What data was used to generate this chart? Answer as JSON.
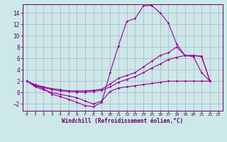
{
  "background_color": "#cce8e8",
  "grid_color": "#b0b0cc",
  "line_color": "#990099",
  "xlabel": "Windchill (Refroidissement éolien,°C)",
  "xlabel_color": "#660066",
  "tick_color": "#660066",
  "xlim": [
    -0.5,
    23.5
  ],
  "ylim": [
    -3.2,
    15.5
  ],
  "yticks": [
    -2,
    0,
    2,
    4,
    6,
    8,
    10,
    12,
    14
  ],
  "xticks": [
    0,
    1,
    2,
    3,
    4,
    5,
    6,
    7,
    8,
    9,
    10,
    11,
    12,
    13,
    14,
    15,
    16,
    17,
    18,
    19,
    20,
    21,
    22,
    23
  ],
  "line1_x": [
    0,
    1,
    2,
    3,
    4,
    5,
    6,
    7,
    8,
    9,
    10,
    11,
    12,
    13,
    14,
    15,
    16,
    17,
    18,
    19,
    20,
    21,
    22
  ],
  "line1_y": [
    2.0,
    1.2,
    0.7,
    -0.3,
    -0.7,
    -1.2,
    -1.7,
    -2.3,
    -2.5,
    -1.7,
    3.5,
    8.2,
    12.5,
    13.0,
    15.2,
    15.3,
    14.0,
    12.2,
    8.5,
    6.5,
    6.3,
    3.5,
    2.0
  ],
  "line2_x": [
    0,
    1,
    2,
    3,
    4,
    5,
    6,
    7,
    8,
    9,
    10,
    11,
    12,
    13,
    14,
    15,
    16,
    17,
    18,
    19,
    20,
    21,
    22
  ],
  "line2_y": [
    2.0,
    1.4,
    1.0,
    0.7,
    0.5,
    0.3,
    0.3,
    0.3,
    0.4,
    0.6,
    1.5,
    2.5,
    3.0,
    3.5,
    4.5,
    5.5,
    6.5,
    7.0,
    8.0,
    6.5,
    6.5,
    6.3,
    2.0
  ],
  "line3_x": [
    0,
    1,
    2,
    3,
    4,
    5,
    6,
    7,
    8,
    9,
    10,
    11,
    12,
    13,
    14,
    15,
    16,
    17,
    18,
    19,
    20,
    21,
    22
  ],
  "line3_y": [
    2.0,
    1.2,
    0.9,
    0.5,
    0.3,
    0.2,
    0.1,
    0.1,
    0.2,
    0.4,
    1.0,
    1.8,
    2.3,
    2.8,
    3.5,
    4.3,
    5.0,
    5.8,
    6.2,
    6.5,
    6.5,
    6.4,
    2.0
  ],
  "line4_x": [
    0,
    1,
    2,
    3,
    4,
    5,
    6,
    7,
    8,
    9,
    10,
    11,
    12,
    13,
    14,
    15,
    16,
    17,
    18,
    19,
    20,
    21,
    22
  ],
  "line4_y": [
    2.0,
    1.0,
    0.5,
    0.0,
    -0.3,
    -0.6,
    -0.9,
    -1.5,
    -2.0,
    -1.5,
    0.2,
    0.8,
    1.0,
    1.2,
    1.4,
    1.6,
    1.8,
    2.0,
    2.0,
    2.0,
    2.0,
    2.0,
    2.0
  ]
}
